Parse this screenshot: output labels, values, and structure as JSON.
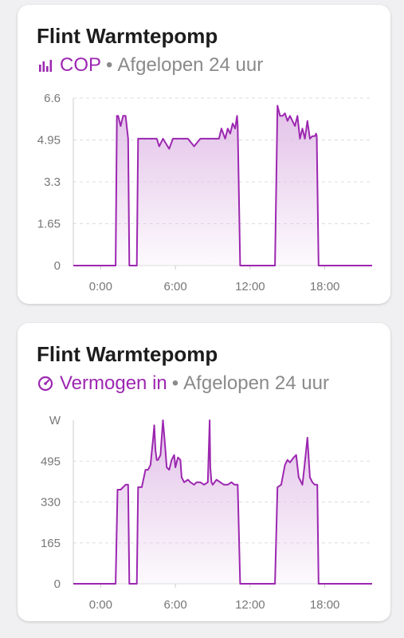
{
  "cards": [
    {
      "title": "Flint Warmtepomp",
      "metric": "COP",
      "period": "Afgelopen 24 uur",
      "icon": "bar-chart-icon",
      "chart_data": {
        "type": "area",
        "x_unit": "hours",
        "x_ticks": [
          "0:00",
          "6:00",
          "12:00",
          "18:00"
        ],
        "y_ticks": [
          "0",
          "1.65",
          "3.3",
          "4.95",
          "6.6"
        ],
        "ylim": [
          0,
          6.6
        ],
        "xlim": [
          -2.2,
          21.8
        ],
        "grid": true,
        "series": [
          {
            "x": [
              -2.2,
              1.2,
              1.3,
              1.4,
              1.6,
              1.8,
              2.0,
              2.2,
              2.3,
              2.5,
              2.7,
              2.9,
              3.0,
              3.5,
              4.0,
              4.5,
              4.7,
              5.0,
              5.5,
              5.8,
              6.0,
              6.5,
              7.0,
              7.5,
              8.0,
              8.5,
              9.0,
              9.5,
              9.7,
              10.0,
              10.2,
              10.4,
              10.6,
              10.8,
              10.95,
              11.0,
              11.2,
              14.0,
              14.2,
              14.4,
              14.6,
              14.8,
              15.0,
              15.2,
              15.4,
              15.6,
              15.8,
              16.0,
              16.2,
              16.4,
              16.6,
              16.8,
              17.0,
              17.2,
              17.3,
              17.35,
              17.5,
              21.8
            ],
            "values": [
              0,
              0,
              5.9,
              5.9,
              5.5,
              5.9,
              5.9,
              5.0,
              0,
              0,
              0,
              0,
              5.0,
              5.0,
              5.0,
              5.0,
              4.7,
              5.0,
              4.6,
              5.0,
              5.0,
              5.0,
              5.0,
              4.7,
              5.0,
              5.0,
              5.0,
              5.0,
              5.4,
              5.0,
              5.4,
              5.2,
              5.6,
              5.4,
              5.9,
              5.5,
              0,
              0,
              6.3,
              5.9,
              5.9,
              6.0,
              5.7,
              5.9,
              5.7,
              5.5,
              5.9,
              5.0,
              5.4,
              5.0,
              5.7,
              5.0,
              5.1,
              5.1,
              5.2,
              5.1,
              0,
              0
            ]
          }
        ]
      }
    },
    {
      "title": "Flint Warmtepomp",
      "metric": "Vermogen in",
      "period": "Afgelopen 24 uur",
      "icon": "gauge-icon",
      "chart_data": {
        "type": "area",
        "x_unit": "hours",
        "x_ticks": [
          "0:00",
          "6:00",
          "12:00",
          "18:00"
        ],
        "y_ticks": [
          "0",
          "165",
          "330",
          "495",
          "W"
        ],
        "ylim": [
          0,
          660
        ],
        "xlim": [
          -2.2,
          21.8
        ],
        "grid": true,
        "series": [
          {
            "x": [
              -2.2,
              1.2,
              1.35,
              1.6,
              2.0,
              2.2,
              2.3,
              2.5,
              2.7,
              2.9,
              3.0,
              3.3,
              3.6,
              3.8,
              4.0,
              4.1,
              4.2,
              4.3,
              4.4,
              4.5,
              4.6,
              4.8,
              5.0,
              5.2,
              5.3,
              5.5,
              5.7,
              5.9,
              6.0,
              6.2,
              6.4,
              6.5,
              6.7,
              7.0,
              7.2,
              7.5,
              7.7,
              8.0,
              8.3,
              8.6,
              8.75,
              8.8,
              8.9,
              9.0,
              9.3,
              9.6,
              9.9,
              10.2,
              10.5,
              10.75,
              10.9,
              11.0,
              11.2,
              14.0,
              14.2,
              14.5,
              14.8,
              15.0,
              15.2,
              15.5,
              15.7,
              15.9,
              16.0,
              16.2,
              16.4,
              16.6,
              16.8,
              17.0,
              17.2,
              17.4,
              17.5,
              21.8
            ],
            "values": [
              0,
              0,
              380,
              380,
              400,
              400,
              0,
              0,
              0,
              0,
              390,
              390,
              460,
              460,
              480,
              530,
              580,
              640,
              540,
              500,
              500,
              520,
              660,
              540,
              470,
              460,
              500,
              520,
              470,
              510,
              500,
              430,
              410,
              420,
              410,
              400,
              410,
              410,
              400,
              410,
              660,
              470,
              410,
              400,
              420,
              410,
              400,
              400,
              410,
              400,
              400,
              400,
              0,
              0,
              390,
              400,
              480,
              500,
              490,
              510,
              520,
              430,
              420,
              400,
              490,
              590,
              430,
              410,
              400,
              400,
              0,
              0
            ]
          }
        ]
      }
    }
  ],
  "colors": {
    "accent": "#9c27b0",
    "fill_top": "#e1bee7",
    "axis_text": "#777777",
    "grid": "#dddddd"
  }
}
